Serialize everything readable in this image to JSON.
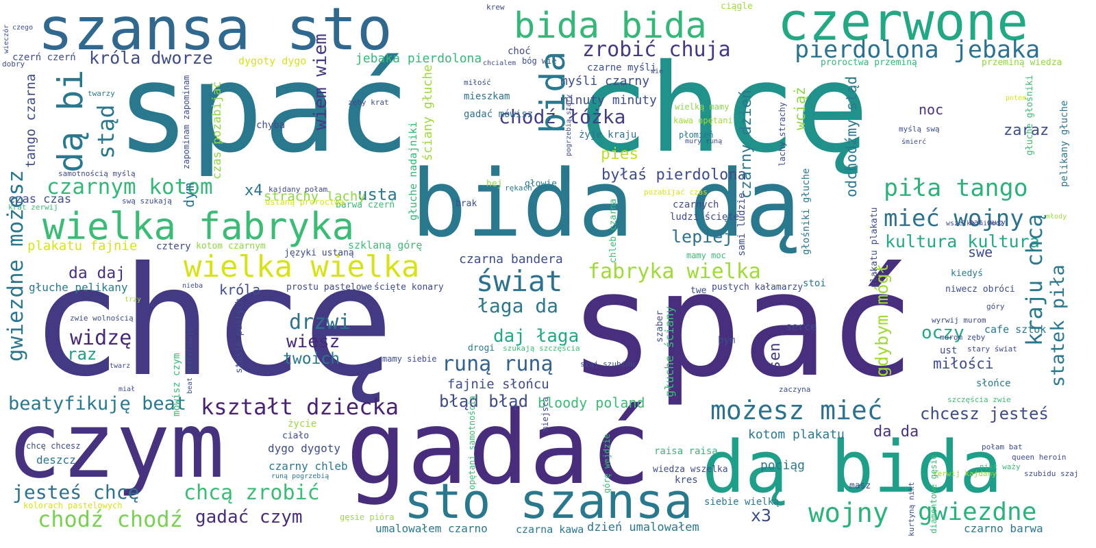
{
  "words": [
    {
      "t": "spać",
      "c": "#2a788e"
    },
    {
      "t": "chcę",
      "c": "#21918c"
    },
    {
      "t": "chcę",
      "c": "#443983"
    },
    {
      "t": "spać",
      "c": "#472f7d"
    },
    {
      "t": "bida dą",
      "c": "#2a788e"
    },
    {
      "t": "szansa sto",
      "c": "#31688e"
    },
    {
      "t": "czerwone",
      "c": "#22a884"
    },
    {
      "t": "bida bida",
      "c": "#35b779"
    },
    {
      "t": "czym",
      "c": "#46327e"
    },
    {
      "t": "gadać",
      "c": "#472d7b"
    },
    {
      "t": "dą bida",
      "c": "#1f9e89"
    },
    {
      "t": "sto szansa",
      "c": "#2a788e"
    },
    {
      "t": "wielka fabryka",
      "c": "#3bbb75"
    },
    {
      "t": "wielka wielka",
      "c": "#d8e219"
    },
    {
      "t": "pierdolona jebaka",
      "c": "#2c728e"
    },
    {
      "t": "zrobić chuja",
      "c": "#443983"
    },
    {
      "t": "króla dworze",
      "c": "#3e4c8a"
    },
    {
      "t": "czarnym kotom",
      "c": "#35b779"
    },
    {
      "t": "piła tango",
      "c": "#2db27d"
    },
    {
      "t": "mieć wojny",
      "c": "#2c728e"
    },
    {
      "t": "kultura kultura",
      "c": "#22a884"
    },
    {
      "t": "możesz mieć",
      "c": "#2c728e"
    },
    {
      "t": "chcesz jesteś",
      "c": "#3e4c8a"
    },
    {
      "t": "kształt dziecka",
      "c": "#482374"
    },
    {
      "t": "beatyfikuję beat",
      "c": "#2a788e"
    },
    {
      "t": "fabryka wielka",
      "c": "#a0da39"
    },
    {
      "t": "świat",
      "c": "#2c728e"
    },
    {
      "t": "łaga da",
      "c": "#2a788e"
    },
    {
      "t": "daj łaga",
      "c": "#22a884"
    },
    {
      "t": "runą runą",
      "c": "#34618d"
    },
    {
      "t": "fajnie słońcu",
      "c": "#3e4c8a"
    },
    {
      "t": "błąd błąd",
      "c": "#3e4c8a"
    },
    {
      "t": "bloody poland",
      "c": "#3bbb75"
    },
    {
      "t": "chodź łóżka",
      "c": "#433e85"
    },
    {
      "t": "myśli czarny",
      "c": "#3e4c8a"
    },
    {
      "t": "minuty minuty",
      "c": "#3e4c8a"
    },
    {
      "t": "byłaś pierdolona",
      "c": "#3e4c8a"
    },
    {
      "t": "lepiej",
      "c": "#2c728e"
    },
    {
      "t": "drzwi",
      "c": "#2c728e"
    },
    {
      "t": "wiesz",
      "c": "#482878"
    },
    {
      "t": "twoich",
      "c": "#2a788e"
    },
    {
      "t": "widzę",
      "c": "#482878"
    },
    {
      "t": "raz",
      "c": "#1f9e89"
    },
    {
      "t": "da daj",
      "c": "#46327e"
    },
    {
      "t": "króla",
      "c": "#3e4c8a"
    },
    {
      "t": "usta",
      "c": "#2a788e"
    },
    {
      "t": "pies",
      "c": "#bddf26"
    },
    {
      "t": "oczy",
      "c": "#22a884"
    },
    {
      "t": "miłości",
      "c": "#3e4c8a"
    },
    {
      "t": "swe",
      "c": "#3e4c8a"
    },
    {
      "t": "noc",
      "c": "#46327e"
    },
    {
      "t": "zaraz",
      "c": "#3e4c8a"
    },
    {
      "t": "sen",
      "c": "#443983"
    },
    {
      "t": "wojny",
      "c": "#2db27d"
    },
    {
      "t": "gwiezdne",
      "c": "#2db27d"
    },
    {
      "t": "czarno barwa",
      "c": "#2a788e"
    },
    {
      "t": "x3",
      "c": "#3e4c8a"
    },
    {
      "t": "chcą zrobić",
      "c": "#3bbb75"
    },
    {
      "t": "gadać czym",
      "c": "#472d7b"
    },
    {
      "t": "chodź chodź",
      "c": "#7ad151"
    },
    {
      "t": "jesteś chcę",
      "c": "#2c728e"
    },
    {
      "t": "da da",
      "c": "#46327e"
    },
    {
      "t": "kotom plakatu",
      "c": "#2a788e"
    },
    {
      "t": "pociąg",
      "c": "#2a788e"
    },
    {
      "t": "deszcz",
      "c": "#2c728e"
    },
    {
      "t": "dygo dygoty",
      "c": "#3e4c8a"
    },
    {
      "t": "czarny chleb",
      "c": "#2a788e"
    },
    {
      "t": "czarna bandera",
      "c": "#3e4c8a"
    },
    {
      "t": "strachy lachy",
      "c": "#8fd744"
    },
    {
      "t": "plakatu fajnie",
      "c": "#d8e219"
    },
    {
      "t": "głuche pelikany",
      "c": "#2a788e"
    },
    {
      "t": "czas czas",
      "c": "#3e4c8a"
    },
    {
      "t": "x4",
      "c": "#2c728e"
    },
    {
      "t": "jebaka pierdolona",
      "c": "#35b779"
    },
    {
      "t": "dygoty dygo",
      "c": "#d8e219"
    },
    {
      "t": "czerń czerń",
      "c": "#3e4c8a"
    },
    {
      "t": "umalowałem czarno",
      "c": "#2a788e"
    },
    {
      "t": "czarna kawa",
      "c": "#2a788e"
    },
    {
      "t": "dzień umalowałem",
      "c": "#2a788e"
    },
    {
      "t": "siebie wielką",
      "c": "#2a788e"
    },
    {
      "t": "proroctwa przeminą",
      "c": "#35b779"
    },
    {
      "t": "przeminą wiedza",
      "c": "#8fd744"
    },
    {
      "t": "mieszkam",
      "c": "#2c728e"
    },
    {
      "t": "gadać mówisz",
      "c": "#2c728e"
    },
    {
      "t": "czarne myśli",
      "c": "#3e4c8a"
    },
    {
      "t": "wielką mamy",
      "c": "#8fd744"
    },
    {
      "t": "kawa opętani",
      "c": "#a0da39"
    },
    {
      "t": "płomień",
      "c": "#2a788e"
    },
    {
      "t": "żyje kraju",
      "c": "#2c728e"
    },
    {
      "t": "chyba",
      "c": "#3e4c8a"
    },
    {
      "t": "dym",
      "c": "#2c728e"
    },
    {
      "t": "brak",
      "c": "#3e4c8a"
    },
    {
      "t": "hej",
      "c": "#8fd744"
    },
    {
      "t": "głowie",
      "c": "#2a788e"
    },
    {
      "t": "cztery",
      "c": "#3e4c8a"
    },
    {
      "t": "kotom czarnym",
      "c": "#8fd744"
    },
    {
      "t": "języki ustaną",
      "c": "#3e4c8a"
    },
    {
      "t": "szklaną górę",
      "c": "#3bbb75"
    },
    {
      "t": "prostu pastelowe",
      "c": "#3e4c8a"
    },
    {
      "t": "ścięte konary",
      "c": "#3e4c8a"
    },
    {
      "t": "barwa czerń",
      "c": "#3bbb75"
    },
    {
      "t": "ustaną proroctwa",
      "c": "#d8e219"
    },
    {
      "t": "kajdany połam",
      "c": "#3e4c8a"
    },
    {
      "t": "swą szukają",
      "c": "#3e4c8a"
    },
    {
      "t": "krat zerwij",
      "c": "#3bbb75"
    },
    {
      "t": "samotnością myślą",
      "c": "#3e4c8a"
    },
    {
      "t": "czarnych",
      "c": "#3e4c8a"
    },
    {
      "t": "ludzi ścięte",
      "c": "#3e4c8a"
    },
    {
      "t": "mamy moc",
      "c": "#3bbb75"
    },
    {
      "t": "pustych kałamarzy",
      "c": "#3e4c8a"
    },
    {
      "t": "twe",
      "c": "#3e4c8a"
    },
    {
      "t": "stoi",
      "c": "#2a788e"
    },
    {
      "t": "kiedyś",
      "c": "#2a788e"
    },
    {
      "t": "niwecz obróci",
      "c": "#3e4c8a"
    },
    {
      "t": "góry",
      "c": "#3e4c8a"
    },
    {
      "t": "wyrwij murom",
      "c": "#3e4c8a"
    },
    {
      "t": "cafe sztok",
      "c": "#2a788e"
    },
    {
      "t": "murom zęby",
      "c": "#3e4c8a"
    },
    {
      "t": "stary świat",
      "c": "#3e4c8a"
    },
    {
      "t": "ust",
      "c": "#3e4c8a"
    },
    {
      "t": "słońce",
      "c": "#2a788e"
    },
    {
      "t": "szczęścia zwie",
      "c": "#3bbb75"
    },
    {
      "t": "połam bat",
      "c": "#3e4c8a"
    },
    {
      "t": "queen heroin",
      "c": "#3e4c8a"
    },
    {
      "t": "nikt waży",
      "c": "#3bbb75"
    },
    {
      "t": "szubidu szaj",
      "c": "#3e4c8a"
    },
    {
      "t": "zerwij kajdany",
      "c": "#a0da39"
    },
    {
      "t": "masz",
      "c": "#3e4c8a"
    },
    {
      "t": "kres",
      "c": "#3e4c8a"
    },
    {
      "t": "raisa raisa",
      "c": "#35b779"
    },
    {
      "t": "wiedza wszelka",
      "c": "#3e4c8a"
    },
    {
      "t": "serce",
      "c": "#3e4c8a"
    },
    {
      "t": "bym",
      "c": "#3e4c8a"
    },
    {
      "t": "zaczyna",
      "c": "#3e4c8a"
    },
    {
      "t": "szaj szubidu",
      "c": "#3e4c8a"
    },
    {
      "t": "mamy siebie",
      "c": "#3e4c8a"
    },
    {
      "t": "szukają szczęścia",
      "c": "#3bbb75"
    },
    {
      "t": "drogi",
      "c": "#2a788e"
    },
    {
      "t": "miejsca",
      "c": "#3e4c8a"
    },
    {
      "t": "rękach",
      "c": "#2a788e"
    },
    {
      "t": "pozabijać czas",
      "c": "#d8e219"
    },
    {
      "t": "życie",
      "c": "#a0da39"
    },
    {
      "t": "ciało",
      "c": "#3e4c8a"
    },
    {
      "t": "chcę chcesz",
      "c": "#3e4c8a"
    },
    {
      "t": "kolorach pastelowych",
      "c": "#d8e219"
    },
    {
      "t": "gęsie pióra",
      "c": "#a0da39"
    },
    {
      "t": "runą pogrzebią",
      "c": "#2a788e"
    },
    {
      "t": "zwie wolnością",
      "c": "#3e4c8a"
    },
    {
      "t": "trzy",
      "c": "#a0da39"
    },
    {
      "t": "nieba",
      "c": "#3e4c8a"
    },
    {
      "t": "twarz",
      "c": "#3e4c8a"
    },
    {
      "t": "miał",
      "c": "#3e4c8a"
    },
    {
      "t": "twarzy",
      "c": "#2a788e"
    },
    {
      "t": "zęby krat",
      "c": "#3e4c8a"
    },
    {
      "t": "chcialem",
      "c": "#3e4c8a"
    },
    {
      "t": "bóg wie",
      "c": "#3e4c8a"
    },
    {
      "t": "choć",
      "c": "#3e4c8a"
    },
    {
      "t": "miłość",
      "c": "#3e4c8a"
    },
    {
      "t": "krew",
      "c": "#3e4c8a"
    },
    {
      "t": "ciągle",
      "c": "#a0da39"
    },
    {
      "t": "dobry",
      "c": "#3e4c8a"
    },
    {
      "t": "wie",
      "c": "#3e4c8a"
    },
    {
      "t": "mury runą",
      "c": "#3e4c8a"
    },
    {
      "t": "potem",
      "c": "#d8e219"
    },
    {
      "t": "myślą swą",
      "c": "#3e4c8a"
    },
    {
      "t": "śmierć",
      "c": "#3e4c8a"
    },
    {
      "t": "bat mury",
      "c": "#3e4c8a"
    },
    {
      "t": "młody",
      "c": "#a0da39"
    },
    {
      "t": "wszelka niwecz",
      "c": "#3e4c8a"
    },
    {
      "t": "gwiezdne możesz",
      "c": "#2a788e"
    },
    {
      "t": "dą bi",
      "c": "#2a788e"
    },
    {
      "t": "stąd",
      "c": "#2a788e"
    },
    {
      "t": "tango czarna",
      "c": "#3e4c8a"
    },
    {
      "t": "wiem wiem",
      "c": "#443983"
    },
    {
      "t": "bida",
      "c": "#2a788e"
    },
    {
      "t": "gdybym mógł",
      "c": "#a0da39"
    },
    {
      "t": "kraju chcą",
      "c": "#2a788e"
    },
    {
      "t": "statek piła",
      "c": "#2a788e"
    },
    {
      "t": "odchodźmy stąd",
      "c": "#2a788e"
    },
    {
      "t": "czarny dzień",
      "c": "#2a788e"
    },
    {
      "t": "wciąż",
      "c": "#8fd744"
    },
    {
      "t": "ściany głuche",
      "c": "#a0da39"
    },
    {
      "t": "głuche nadajniki",
      "c": "#35b779"
    },
    {
      "t": "zapominam zapominam",
      "c": "#3e4c8a"
    },
    {
      "t": "czas pozabijać",
      "c": "#8fd744"
    },
    {
      "t": "chleb czarna",
      "c": "#3bbb75"
    },
    {
      "t": "sami ludzie",
      "c": "#3e4c8a"
    },
    {
      "t": "głośniki głuche",
      "c": "#2a788e"
    },
    {
      "t": "plakatu plakatu",
      "c": "#3e4c8a"
    },
    {
      "t": "lachy strachy",
      "c": "#3e4c8a"
    },
    {
      "t": "głuche ściany",
      "c": "#3bbb75"
    },
    {
      "t": "szaber",
      "c": "#3e4c8a"
    },
    {
      "t": "stosie pustych",
      "c": "#3e4c8a"
    },
    {
      "t": "mówisz czym",
      "c": "#3bbb75"
    },
    {
      "t": "beat beatyfikuję",
      "c": "#3e4c8a"
    },
    {
      "t": "opętani samotnością",
      "c": "#3bbb75"
    },
    {
      "t": "górę wejdzie",
      "c": "#3bbb75"
    },
    {
      "t": "diamentowe gęsie",
      "c": "#3bbb75"
    },
    {
      "t": "kurtyną nikt",
      "c": "#3e4c8a"
    },
    {
      "t": "pogrzebią stary",
      "c": "#3e4c8a"
    },
    {
      "t": "głuche głośniki",
      "c": "#3bbb75"
    },
    {
      "t": "pelikany głuche",
      "c": "#2a788e"
    },
    {
      "t": "wieczór",
      "c": "#3e4c8a"
    },
    {
      "t": "czego",
      "c": "#3e4c8a"
    }
  ]
}
